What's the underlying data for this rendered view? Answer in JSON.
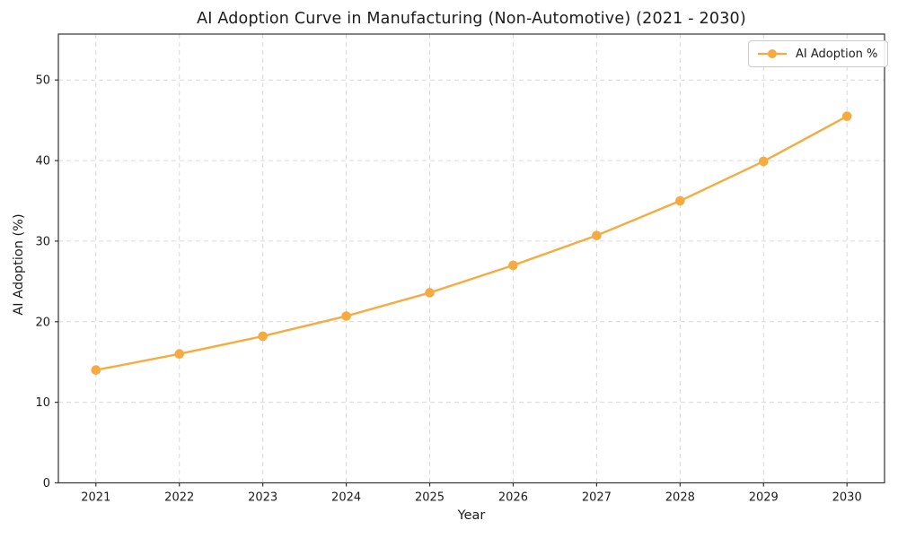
{
  "chart_data": {
    "type": "line",
    "title": "AI Adoption Curve in Manufacturing (Non-Automotive) (2021 - 2030)",
    "xlabel": "Year",
    "ylabel": "AI Adoption (%)",
    "x": [
      2021,
      2022,
      2023,
      2024,
      2025,
      2026,
      2027,
      2028,
      2029,
      2030
    ],
    "series": [
      {
        "name": "AI Adoption %",
        "values": [
          14.0,
          16.0,
          18.2,
          20.7,
          23.6,
          27.0,
          30.7,
          35.0,
          39.9,
          45.5
        ],
        "color": "#f5ab40",
        "marker": "circle"
      }
    ],
    "yticks": [
      0,
      10,
      20,
      30,
      40,
      50
    ],
    "ylim": [
      0,
      55.7
    ],
    "grid": true,
    "grid_style": "dashed",
    "legend_position": "upper right",
    "colors": {
      "grid": "#d9d9d9",
      "spine": "#333333",
      "tick_text": "#1c1c1c",
      "background": "#ffffff"
    }
  }
}
